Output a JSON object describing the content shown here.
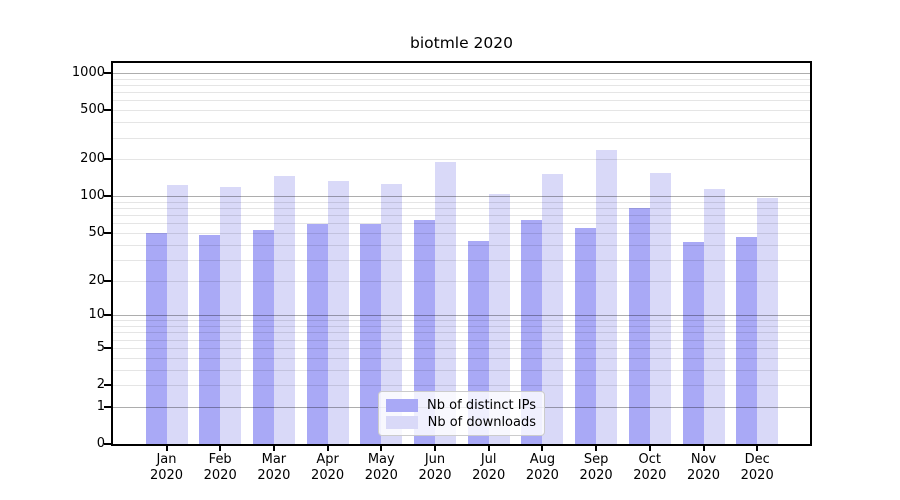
{
  "title": "biotmle 2020",
  "chart_data": {
    "type": "bar",
    "title": "biotmle 2020",
    "categories": [
      {
        "month": "Jan",
        "year": "2020"
      },
      {
        "month": "Feb",
        "year": "2020"
      },
      {
        "month": "Mar",
        "year": "2020"
      },
      {
        "month": "Apr",
        "year": "2020"
      },
      {
        "month": "May",
        "year": "2020"
      },
      {
        "month": "Jun",
        "year": "2020"
      },
      {
        "month": "Jul",
        "year": "2020"
      },
      {
        "month": "Aug",
        "year": "2020"
      },
      {
        "month": "Sep",
        "year": "2020"
      },
      {
        "month": "Oct",
        "year": "2020"
      },
      {
        "month": "Nov",
        "year": "2020"
      },
      {
        "month": "Dec",
        "year": "2020"
      }
    ],
    "series": [
      {
        "name": "Nb of distinct IPs",
        "color": "#a9a9f6",
        "values": [
          50,
          48,
          53,
          59,
          59,
          64,
          43,
          64,
          55,
          80,
          42,
          46
        ]
      },
      {
        "name": "Nb of downloads",
        "color": "#d9d9f8",
        "values": [
          123,
          120,
          146,
          133,
          126,
          190,
          104,
          152,
          238,
          155,
          114,
          97
        ]
      }
    ],
    "xlabel": "",
    "ylabel": "",
    "yscale": "log10(value+1)",
    "ylim": [
      0,
      1205
    ],
    "yticks": [
      0,
      1,
      2,
      5,
      10,
      20,
      50,
      100,
      200,
      500,
      1000
    ],
    "grid": true,
    "legend_position": "bottom-center"
  },
  "colors": {
    "bar_distinct_ips": "#a9a9f6",
    "bar_downloads": "#d9d9f8",
    "major_gridline": "#b0b0b0",
    "minor_gridline": "#e6e6e6",
    "axis": "#000000",
    "background": "#ffffff"
  }
}
